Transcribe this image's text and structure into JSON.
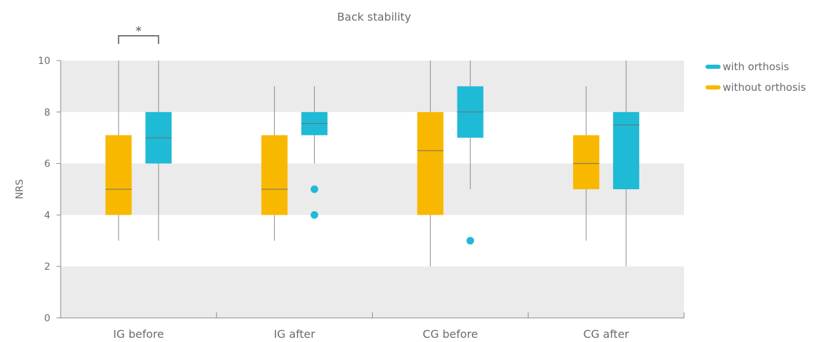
{
  "chart_data": {
    "type": "boxplot",
    "title": "Back stability",
    "ylabel": "NRS",
    "xlabel": "",
    "ylim": [
      0,
      10
    ],
    "yticks": [
      0,
      2,
      4,
      6,
      8,
      10
    ],
    "grid": "alternating horizontal bands",
    "legend_position": "top-right",
    "categories": [
      "IG before",
      "IG after",
      "CG before",
      "CG after"
    ],
    "series": [
      {
        "name": "with orthosis",
        "color": "#1fbad6",
        "boxes": [
          {
            "min": 3,
            "q1": 6,
            "median": 7,
            "q3": 8,
            "max": 10,
            "outliers": []
          },
          {
            "min": 6,
            "q1": 7.1,
            "median": 7.55,
            "q3": 8,
            "max": 9,
            "outliers": [
              5,
              4
            ]
          },
          {
            "min": 5,
            "q1": 7,
            "median": 8,
            "q3": 9,
            "max": 10,
            "outliers": [
              3
            ]
          },
          {
            "min": 2,
            "q1": 5,
            "median": 7.5,
            "q3": 8,
            "max": 10,
            "outliers": []
          }
        ]
      },
      {
        "name": "without orthosis",
        "color": "#f9b800",
        "boxes": [
          {
            "min": 3,
            "q1": 4,
            "median": 5,
            "q3": 7.1,
            "max": 10,
            "outliers": []
          },
          {
            "min": 3,
            "q1": 4,
            "median": 5,
            "q3": 7.1,
            "max": 9,
            "outliers": []
          },
          {
            "min": 2,
            "q1": 4,
            "median": 6.5,
            "q3": 8,
            "max": 10,
            "outliers": []
          },
          {
            "min": 3,
            "q1": 5,
            "median": 6,
            "q3": 7.1,
            "max": 9,
            "outliers": []
          }
        ]
      }
    ],
    "annotations": [
      {
        "text": "*",
        "category": "IG before",
        "type": "significance-bracket"
      }
    ]
  }
}
